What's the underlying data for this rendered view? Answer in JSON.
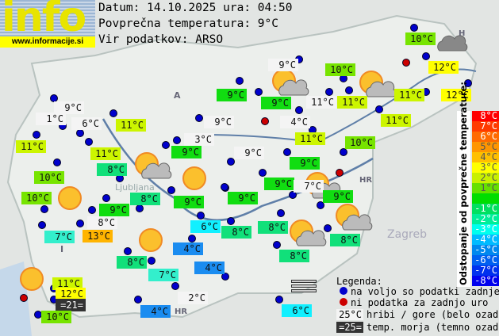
{
  "logo": {
    "text": "info",
    "url": "www.informacije.si"
  },
  "header": {
    "date_line": "Datum: 14.10.2025 ura: 04:50",
    "avg_line": "Povprečna temperatura: 9°C",
    "source_line": "Vir podatkov: ARSO"
  },
  "map_labels": {
    "austria": "A",
    "italy": "I",
    "hungary": "H",
    "croatia": "HR",
    "croatia2": "HR",
    "ljubljana": "Ljubljana",
    "zagreb": "Zagreb"
  },
  "colors": {
    "white": "#f4f4f4",
    "lime11": "#ccf500",
    "lime10": "#77e400",
    "g9": "#11dd11",
    "g8": "#11e07a",
    "g7": "#33efcc",
    "cyan6": "#11f0ff",
    "blue4": "#1a8cf0",
    "yellow12": "#ffff00",
    "orange13": "#ffb400",
    "dark": "#333333",
    "dot_ok": "#0000cc",
    "dot_missing": "#cc0000"
  },
  "stations": [
    {
      "t": "10°C",
      "c": "lime10"
    },
    {
      "t": "9°C",
      "c": "white"
    },
    {
      "t": "10°C",
      "c": "lime10"
    },
    {
      "t": "12°C",
      "c": "yellow12"
    },
    {
      "t": "12°C",
      "c": "yellow12"
    },
    {
      "t": "11°C",
      "c": "lime11"
    },
    {
      "t": "11°C",
      "c": "lime11"
    },
    {
      "t": "11°C",
      "c": "white"
    },
    {
      "t": "9°C",
      "c": "g9"
    },
    {
      "t": "9°C",
      "c": "g9"
    },
    {
      "t": "9°C",
      "c": "white"
    },
    {
      "t": "1°C",
      "c": "white"
    },
    {
      "t": "6°C",
      "c": "white"
    },
    {
      "t": "11°C",
      "c": "lime11"
    },
    {
      "t": "9°C",
      "c": "white"
    },
    {
      "t": "4°C",
      "c": "white"
    },
    {
      "t": "11°C",
      "c": "lime11"
    },
    {
      "t": "3°C",
      "c": "white"
    },
    {
      "t": "11°C",
      "c": "lime11"
    },
    {
      "t": "11°C",
      "c": "lime11"
    },
    {
      "t": "11°C",
      "c": "lime11"
    },
    {
      "t": "9°C",
      "c": "g9"
    },
    {
      "t": "9°C",
      "c": "white"
    },
    {
      "t": "10°C",
      "c": "lime10"
    },
    {
      "t": "8°C",
      "c": "g8"
    },
    {
      "t": "9°C",
      "c": "g9"
    },
    {
      "t": "10°C",
      "c": "lime10"
    },
    {
      "t": "9°C",
      "c": "g9"
    },
    {
      "t": "7°C",
      "c": "white"
    },
    {
      "t": "9°C",
      "c": "g9"
    },
    {
      "t": "10°C",
      "c": "lime10"
    },
    {
      "t": "8°C",
      "c": "g8"
    },
    {
      "t": "9°C",
      "c": "g9"
    },
    {
      "t": "9°C",
      "c": "g9"
    },
    {
      "t": "9°C",
      "c": "g9"
    },
    {
      "t": "8°C",
      "c": "white"
    },
    {
      "t": "7°C",
      "c": "g7"
    },
    {
      "t": "13°C",
      "c": "orange13"
    },
    {
      "t": "6°C",
      "c": "cyan6"
    },
    {
      "t": "8°C",
      "c": "g8"
    },
    {
      "t": "8°C",
      "c": "g8"
    },
    {
      "t": "8°C",
      "c": "g8"
    },
    {
      "t": "4°C",
      "c": "blue4"
    },
    {
      "t": "8°C",
      "c": "g8"
    },
    {
      "t": "7°C",
      "c": "g7"
    },
    {
      "t": "8°C",
      "c": "g8"
    },
    {
      "t": "4°C",
      "c": "blue4"
    },
    {
      "t": "11°C",
      "c": "lime11"
    },
    {
      "t": "12°C",
      "c": "yellow12"
    },
    {
      "t": "=21=",
      "c": "dark"
    },
    {
      "t": "10°C",
      "c": "lime10"
    },
    {
      "t": "2°C",
      "c": "white"
    },
    {
      "t": "4°C",
      "c": "blue4"
    },
    {
      "t": "6°C",
      "c": "cyan6"
    }
  ],
  "scale": {
    "title": "Odstopanje od povprečne temperature:",
    "rows": [
      {
        "t": "8°C",
        "c": "#ff0000"
      },
      {
        "t": "7°C",
        "c": "#ff3a00"
      },
      {
        "t": "6°C",
        "c": "#ff6a00"
      },
      {
        "t": "5°C",
        "c": "#ff9600"
      },
      {
        "t": "4°C",
        "c": "#ffc000"
      },
      {
        "t": "3°C",
        "c": "#ffff00"
      },
      {
        "t": "2°C",
        "c": "#c8f000"
      },
      {
        "t": "1°C",
        "c": "#66e000"
      },
      {
        "t": "",
        "c": "#00dd00"
      },
      {
        "t": "-1°C",
        "c": "#00e060"
      },
      {
        "t": "-2°C",
        "c": "#00ee99"
      },
      {
        "t": "-3°C",
        "c": "#00ffee"
      },
      {
        "t": "-4°C",
        "c": "#00bbff"
      },
      {
        "t": "-5°C",
        "c": "#0088ee"
      },
      {
        "t": "-6°C",
        "c": "#0060f0"
      },
      {
        "t": "-7°C",
        "c": "#0030ee"
      },
      {
        "t": "-8°C",
        "c": "#0000ee"
      }
    ]
  },
  "legend": {
    "title": "Legenda:",
    "ok": "na voljo so podatki zadnje ure",
    "missing": "ni podatka za zadnjo uro",
    "hill_sample": "25°C",
    "hill": "hribi / gore (belo ozadje)",
    "sea_sample": "=25=",
    "sea": "temp. morja (temno ozadje)"
  }
}
